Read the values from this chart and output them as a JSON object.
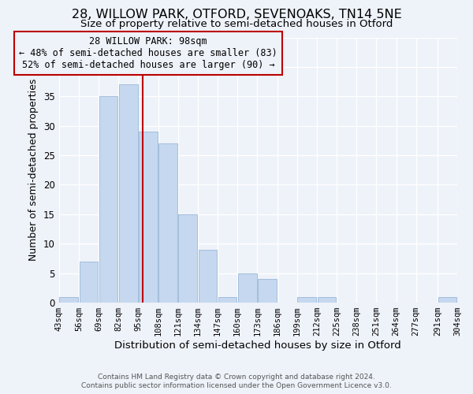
{
  "title": "28, WILLOW PARK, OTFORD, SEVENOAKS, TN14 5NE",
  "subtitle": "Size of property relative to semi-detached houses in Otford",
  "xlabel": "Distribution of semi-detached houses by size in Otford",
  "ylabel": "Number of semi-detached properties",
  "footer_lines": [
    "Contains HM Land Registry data © Crown copyright and database right 2024.",
    "Contains public sector information licensed under the Open Government Licence v3.0."
  ],
  "bin_edges": [
    43,
    56,
    69,
    82,
    95,
    108,
    121,
    134,
    147,
    160,
    173,
    186,
    199,
    212,
    225,
    238,
    251,
    264,
    277,
    291,
    304
  ],
  "bin_counts": [
    1,
    7,
    35,
    37,
    29,
    27,
    15,
    9,
    1,
    5,
    4,
    0,
    1,
    1,
    0,
    0,
    0,
    0,
    0,
    1
  ],
  "property_value": 98,
  "annotation_title": "28 WILLOW PARK: 98sqm",
  "annotation_line1": "← 48% of semi-detached houses are smaller (83)",
  "annotation_line2": "52% of semi-detached houses are larger (90) →",
  "bar_color": "#c5d8ef",
  "bar_edge_color": "#9ab8d8",
  "vline_color": "#bb0000",
  "annotation_box_edge_color": "#bb0000",
  "ylim": [
    0,
    45
  ],
  "xlim": [
    43,
    304
  ],
  "bg_color": "#eef2f9",
  "grid_color": "#ffffff",
  "title_fontsize": 11.5,
  "subtitle_fontsize": 9.5,
  "xlabel_fontsize": 9.5,
  "ylabel_fontsize": 9,
  "tick_fontsize": 7.5,
  "annotation_fontsize": 8.5,
  "footer_fontsize": 6.5
}
